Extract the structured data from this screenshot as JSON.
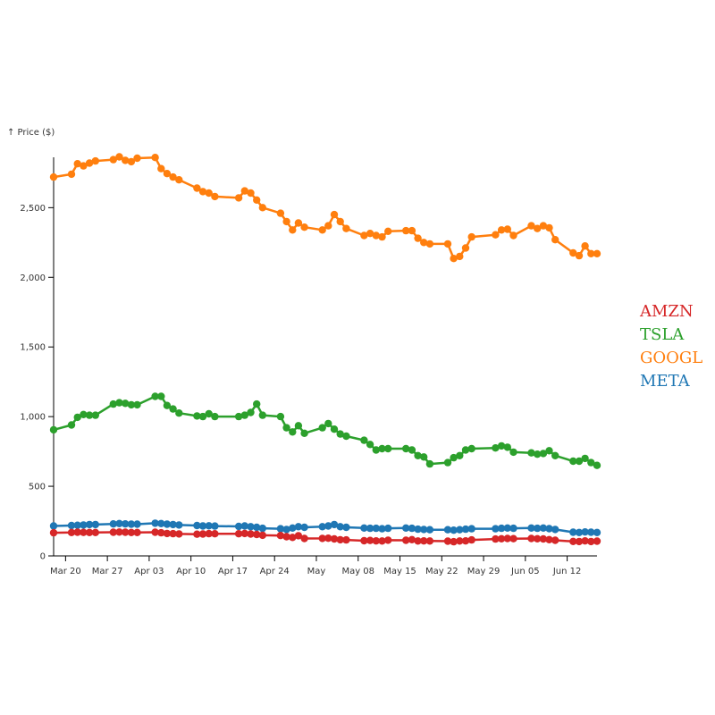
{
  "chart_data": {
    "type": "line",
    "ylabel": "↑ Price ($)",
    "xlabel": "",
    "ylim": [
      0,
      2900
    ],
    "xlim": [
      "2022-03-18",
      "2022-06-17"
    ],
    "y_ticks": [
      {
        "value": 0,
        "label": "0"
      },
      {
        "value": 500,
        "label": "500"
      },
      {
        "value": 1000,
        "label": "1,000"
      },
      {
        "value": 1500,
        "label": "1,500"
      },
      {
        "value": 2000,
        "label": "2,000"
      },
      {
        "value": 2500,
        "label": "2,500"
      }
    ],
    "x_ticks": [
      {
        "date": "2022-03-20",
        "label": "Mar 20"
      },
      {
        "date": "2022-03-27",
        "label": "Mar 27"
      },
      {
        "date": "2022-04-03",
        "label": "Apr 03"
      },
      {
        "date": "2022-04-10",
        "label": "Apr 10"
      },
      {
        "date": "2022-04-17",
        "label": "Apr 17"
      },
      {
        "date": "2022-04-24",
        "label": "Apr 24"
      },
      {
        "date": "2022-05-01",
        "label": "May"
      },
      {
        "date": "2022-05-08",
        "label": "May 08"
      },
      {
        "date": "2022-05-15",
        "label": "May 15"
      },
      {
        "date": "2022-05-22",
        "label": "May 22"
      },
      {
        "date": "2022-05-29",
        "label": "May 29"
      },
      {
        "date": "2022-06-05",
        "label": "Jun 05"
      },
      {
        "date": "2022-06-12",
        "label": "Jun 12"
      }
    ],
    "legend_position": "right",
    "grid": false,
    "x": [
      "2022-03-18",
      "2022-03-21",
      "2022-03-22",
      "2022-03-23",
      "2022-03-24",
      "2022-03-25",
      "2022-03-28",
      "2022-03-29",
      "2022-03-30",
      "2022-03-31",
      "2022-04-01",
      "2022-04-04",
      "2022-04-05",
      "2022-04-06",
      "2022-04-07",
      "2022-04-08",
      "2022-04-11",
      "2022-04-12",
      "2022-04-13",
      "2022-04-14",
      "2022-04-18",
      "2022-04-19",
      "2022-04-20",
      "2022-04-21",
      "2022-04-22",
      "2022-04-25",
      "2022-04-26",
      "2022-04-27",
      "2022-04-28",
      "2022-04-29",
      "2022-05-02",
      "2022-05-03",
      "2022-05-04",
      "2022-05-05",
      "2022-05-06",
      "2022-05-09",
      "2022-05-10",
      "2022-05-11",
      "2022-05-12",
      "2022-05-13",
      "2022-05-16",
      "2022-05-17",
      "2022-05-18",
      "2022-05-19",
      "2022-05-20",
      "2022-05-23",
      "2022-05-24",
      "2022-05-25",
      "2022-05-26",
      "2022-05-27",
      "2022-05-31",
      "2022-06-01",
      "2022-06-02",
      "2022-06-03",
      "2022-06-06",
      "2022-06-07",
      "2022-06-08",
      "2022-06-09",
      "2022-06-10",
      "2022-06-13",
      "2022-06-14",
      "2022-06-15",
      "2022-06-16",
      "2022-06-17"
    ],
    "series": [
      {
        "name": "AMZN",
        "color": "#d62728",
        "values": [
          166,
          168,
          170,
          169,
          168,
          168,
          170,
          171,
          170,
          168,
          168,
          170,
          166,
          161,
          160,
          158,
          156,
          157,
          160,
          159,
          159,
          161,
          157,
          154,
          148,
          146,
          138,
          133,
          145,
          125,
          126,
          127,
          122,
          116,
          115,
          109,
          111,
          108,
          107,
          113,
          112,
          117,
          107,
          108,
          107,
          106,
          102,
          107,
          108,
          115,
          121,
          123,
          125,
          124,
          125,
          123,
          122,
          117,
          112,
          104,
          103,
          108,
          103,
          106
        ]
      },
      {
        "name": "TSLA",
        "color": "#2ca02c",
        "values": [
          905,
          940,
          995,
          1015,
          1010,
          1010,
          1090,
          1100,
          1095,
          1085,
          1085,
          1145,
          1145,
          1080,
          1055,
          1025,
          1005,
          1000,
          1020,
          1000,
          1000,
          1010,
          1030,
          1090,
          1010,
          1000,
          920,
          890,
          935,
          880,
          920,
          950,
          910,
          875,
          860,
          830,
          800,
          760,
          770,
          770,
          770,
          760,
          720,
          710,
          660,
          670,
          705,
          720,
          760,
          770,
          775,
          790,
          780,
          745,
          740,
          730,
          735,
          755,
          720,
          680,
          680,
          700,
          670,
          650
        ]
      },
      {
        "name": "GOOGL",
        "color": "#ff7f0e",
        "values": [
          2720,
          2740,
          2815,
          2800,
          2820,
          2835,
          2845,
          2865,
          2840,
          2830,
          2855,
          2860,
          2780,
          2745,
          2720,
          2700,
          2640,
          2615,
          2605,
          2580,
          2570,
          2620,
          2605,
          2555,
          2500,
          2460,
          2400,
          2340,
          2390,
          2360,
          2340,
          2370,
          2450,
          2400,
          2350,
          2300,
          2315,
          2300,
          2290,
          2330,
          2335,
          2335,
          2280,
          2250,
          2240,
          2240,
          2135,
          2150,
          2210,
          2290,
          2305,
          2340,
          2345,
          2300,
          2370,
          2350,
          2370,
          2355,
          2270,
          2175,
          2155,
          2225,
          2170,
          2170
        ]
      },
      {
        "name": "META",
        "color": "#1f77b4",
        "values": [
          215,
          218,
          220,
          222,
          225,
          225,
          230,
          232,
          230,
          228,
          228,
          235,
          232,
          228,
          225,
          222,
          218,
          215,
          216,
          214,
          212,
          215,
          210,
          205,
          198,
          195,
          190,
          200,
          210,
          205,
          210,
          215,
          225,
          210,
          205,
          200,
          198,
          198,
          195,
          198,
          200,
          198,
          192,
          190,
          188,
          188,
          185,
          188,
          192,
          195,
          195,
          198,
          200,
          198,
          200,
          198,
          200,
          196,
          190,
          170,
          168,
          172,
          170,
          168
        ]
      }
    ]
  }
}
